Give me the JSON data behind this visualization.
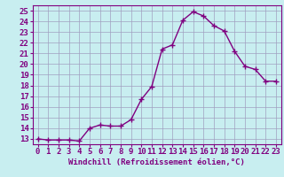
{
  "x": [
    0,
    1,
    2,
    3,
    4,
    5,
    6,
    7,
    8,
    9,
    10,
    11,
    12,
    13,
    14,
    15,
    16,
    17,
    18,
    19,
    20,
    21,
    22,
    23
  ],
  "y": [
    13,
    12.9,
    12.9,
    12.9,
    12.8,
    14.0,
    14.3,
    14.2,
    14.2,
    14.8,
    16.7,
    17.9,
    21.4,
    21.8,
    24.1,
    24.9,
    24.5,
    23.6,
    23.1,
    21.2,
    19.8,
    19.5,
    18.4,
    18.4
  ],
  "line_color": "#800080",
  "marker_color": "#800080",
  "bg_color": "#C8EEF0",
  "grid_color": "#A0A0C0",
  "xlabel": "Windchill (Refroidissement éolien,°C)",
  "xlim": [
    -0.5,
    23.5
  ],
  "ylim": [
    12.5,
    25.5
  ],
  "yticks": [
    13,
    14,
    15,
    16,
    17,
    18,
    19,
    20,
    21,
    22,
    23,
    24,
    25
  ],
  "xticks": [
    0,
    1,
    2,
    3,
    4,
    5,
    6,
    7,
    8,
    9,
    10,
    11,
    12,
    13,
    14,
    15,
    16,
    17,
    18,
    19,
    20,
    21,
    22,
    23
  ],
  "axis_color": "#800080",
  "tick_label_color": "#800080",
  "xlabel_color": "#800080",
  "xlabel_fontsize": 6.5,
  "tick_fontsize": 6.5,
  "marker_size": 2.5,
  "line_width": 1.0
}
